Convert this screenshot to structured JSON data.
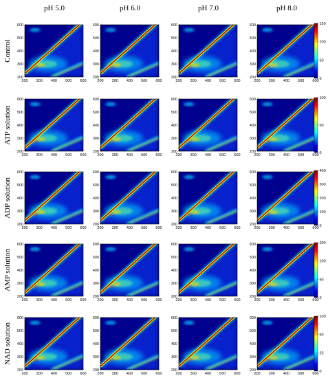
{
  "chart_data": {
    "type": "heatmap",
    "columns": [
      "pH 5.0",
      "pH 6.0",
      "pH 7.0",
      "pH 8.0"
    ],
    "rows": [
      "Control",
      "ATP solution",
      "ADP solution",
      "AMP solution",
      "NAD solution"
    ],
    "x_ticks": [
      "200",
      "300",
      "400",
      "500",
      "600"
    ],
    "y_ticks": [
      "200",
      "300",
      "400",
      "500",
      "600"
    ],
    "xlim": [
      200,
      600
    ],
    "ylim": [
      200,
      600
    ],
    "colorscale": [
      "#00008f",
      "#0000ff",
      "#0080ff",
      "#00ffff",
      "#80ff80",
      "#ffff00",
      "#ff8000",
      "#ff0000",
      "#800000"
    ],
    "colorbars": [
      {
        "row": "Control",
        "ticks": [
          "150",
          "100",
          "50",
          "0"
        ]
      },
      {
        "row": "ATP solution",
        "ticks": [
          "100",
          "50",
          "0"
        ]
      },
      {
        "row": "ADP solution",
        "ticks": [
          "400",
          "300",
          "200",
          "100",
          "0"
        ]
      },
      {
        "row": "AMP solution",
        "ticks": [
          "200",
          "100",
          "50",
          "0"
        ]
      },
      {
        "row": "NAD solution",
        "ticks": [
          "100",
          "50",
          "25",
          "0"
        ]
      }
    ]
  }
}
